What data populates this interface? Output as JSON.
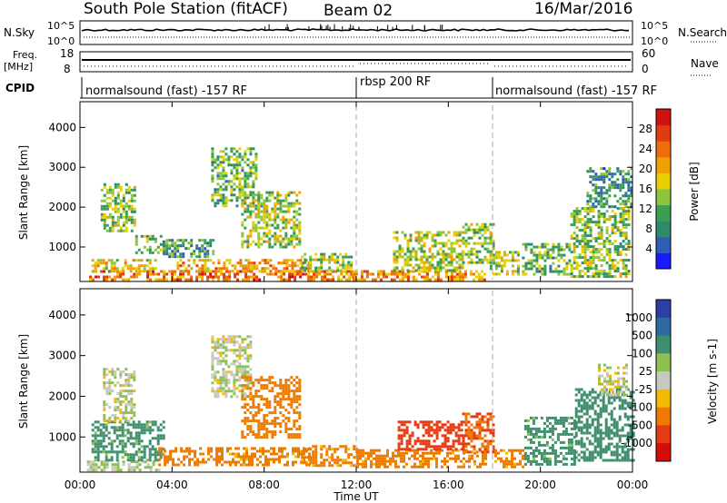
{
  "header": {
    "station": "South Pole Station (fitACF)",
    "beam": "Beam 02",
    "date": "16/Mar/2016"
  },
  "side_labels": {
    "nsky": "N.Sky",
    "nsearch": "N.Search",
    "freq_line1": "Freq.",
    "freq_line2": "[MHz]",
    "nave": "Nave",
    "cpid": "CPID"
  },
  "strip_axes": {
    "noise_left_top": "10^5",
    "noise_left_bottom": "10^0",
    "noise_right_top": "10^5",
    "noise_right_bottom": "10^0",
    "freq_left_top": "18",
    "freq_left_bottom": "8",
    "nave_right_top": "60",
    "nave_right_bottom": "0"
  },
  "modes": [
    {
      "label": "normalsound (fast) -157 RF",
      "start_hour": 0
    },
    {
      "label": "rbsp 200 RF",
      "start_hour": 12
    },
    {
      "label": "normalsound (fast) -157 RF",
      "start_hour": 18
    }
  ],
  "xaxis": {
    "label": "Time UT",
    "ticks": [
      "00:00",
      "04:00",
      "08:00",
      "12:00",
      "16:00",
      "20:00",
      "00:00"
    ]
  },
  "colorbars": {
    "power": {
      "label": "Power [dB]",
      "ticks": [
        "4",
        "8",
        "12",
        "16",
        "20",
        "24",
        "28"
      ],
      "colors": [
        "#1a1aff",
        "#2f5fb5",
        "#2e8b6a",
        "#3a9f50",
        "#8cc63f",
        "#e8d000",
        "#f2a000",
        "#ef6d0a",
        "#e03c10",
        "#d11010"
      ]
    },
    "velocity": {
      "label": "Velocity [m s-1]",
      "ticks": [
        "1000",
        "500",
        "100",
        "25",
        "-25",
        "-100",
        "-500",
        "-1000"
      ],
      "colors": [
        "#2c3ea8",
        "#2d6aa0",
        "#3f8f6e",
        "#8cc050",
        "#c8c8c0",
        "#f5b800",
        "#ee7a00",
        "#e63a10",
        "#d40c0c"
      ]
    }
  },
  "chart_data": [
    {
      "type": "heatmap",
      "name": "power",
      "xlabel": "Time UT",
      "ylabel": "Slant Range [km]",
      "xlim_hours": [
        0,
        24
      ],
      "ylim_km": [
        180,
        4600
      ],
      "yticks": [
        1000,
        2000,
        3000,
        4000
      ],
      "colorbar_label": "Power [dB]",
      "colorbar_range": [
        0,
        32
      ],
      "mode_change_hours": [
        12,
        18
      ],
      "regions": [
        {
          "t": [
            0.4,
            12.0
          ],
          "r": [
            200,
            420
          ],
          "v": 24
        },
        {
          "t": [
            0.5,
            3.3
          ],
          "r": [
            420,
            700
          ],
          "v": 18
        },
        {
          "t": [
            0.9,
            2.4
          ],
          "r": [
            1400,
            2600
          ],
          "v": 14
        },
        {
          "t": [
            2.4,
            3.6
          ],
          "r": [
            850,
            1300
          ],
          "v": 12
        },
        {
          "t": [
            3.6,
            5.8
          ],
          "r": [
            750,
            1200
          ],
          "v": 10
        },
        {
          "t": [
            4.2,
            10.0
          ],
          "r": [
            420,
            700
          ],
          "v": 21
        },
        {
          "t": [
            5.7,
            7.6
          ],
          "r": [
            2000,
            3500
          ],
          "v": 12
        },
        {
          "t": [
            7.0,
            9.6
          ],
          "r": [
            1000,
            2400
          ],
          "v": 15
        },
        {
          "t": [
            9.6,
            11.8
          ],
          "r": [
            420,
            850
          ],
          "v": 14
        },
        {
          "t": [
            11.6,
            17.6
          ],
          "r": [
            200,
            420
          ],
          "v": 22
        },
        {
          "t": [
            13.6,
            16.6
          ],
          "r": [
            420,
            1400
          ],
          "v": 16
        },
        {
          "t": [
            16.6,
            18.0
          ],
          "r": [
            600,
            1600
          ],
          "v": 14
        },
        {
          "t": [
            17.8,
            19.1
          ],
          "r": [
            300,
            900
          ],
          "v": 16
        },
        {
          "t": [
            19.2,
            21.3
          ],
          "r": [
            280,
            1100
          ],
          "v": 12
        },
        {
          "t": [
            21.3,
            23.9
          ],
          "r": [
            250,
            2000
          ],
          "v": 14
        },
        {
          "t": [
            22.0,
            24.0
          ],
          "r": [
            2000,
            3000
          ],
          "v": 9
        }
      ]
    },
    {
      "type": "heatmap",
      "name": "velocity",
      "xlabel": "Time UT",
      "ylabel": "Slant Range [km]",
      "xlim_hours": [
        0,
        24
      ],
      "ylim_km": [
        180,
        4600
      ],
      "yticks": [
        1000,
        2000,
        3000,
        4000
      ],
      "colorbar_label": "Velocity [m s-1]",
      "colorbar_range": [
        -1200,
        1200
      ],
      "mode_change_hours": [
        12,
        18
      ],
      "regions": [
        {
          "t": [
            0.3,
            3.4
          ],
          "r": [
            200,
            420
          ],
          "v": 40
        },
        {
          "t": [
            0.5,
            3.6
          ],
          "r": [
            420,
            1400
          ],
          "v": 150
        },
        {
          "t": [
            1.0,
            2.4
          ],
          "r": [
            1400,
            2700
          ],
          "v": 10
        },
        {
          "t": [
            3.4,
            6.0
          ],
          "r": [
            300,
            750
          ],
          "v": -200
        },
        {
          "t": [
            6.0,
            10.0
          ],
          "r": [
            300,
            750
          ],
          "v": -150
        },
        {
          "t": [
            5.7,
            7.4
          ],
          "r": [
            2000,
            3500
          ],
          "v": 15
        },
        {
          "t": [
            7.0,
            9.6
          ],
          "r": [
            1000,
            2500
          ],
          "v": -400
        },
        {
          "t": [
            9.6,
            12.0
          ],
          "r": [
            300,
            800
          ],
          "v": -150
        },
        {
          "t": [
            12.0,
            17.6
          ],
          "r": [
            250,
            700
          ],
          "v": -150
        },
        {
          "t": [
            13.8,
            16.6
          ],
          "r": [
            700,
            1400
          ],
          "v": -700
        },
        {
          "t": [
            16.6,
            18.0
          ],
          "r": [
            600,
            1600
          ],
          "v": -500
        },
        {
          "t": [
            18.0,
            19.3
          ],
          "r": [
            250,
            700
          ],
          "v": -120
        },
        {
          "t": [
            19.3,
            21.5
          ],
          "r": [
            300,
            1500
          ],
          "v": 150
        },
        {
          "t": [
            21.5,
            24.0
          ],
          "r": [
            400,
            2200
          ],
          "v": 180
        },
        {
          "t": [
            22.5,
            23.8
          ],
          "r": [
            2000,
            2800
          ],
          "v": 5
        }
      ]
    }
  ]
}
